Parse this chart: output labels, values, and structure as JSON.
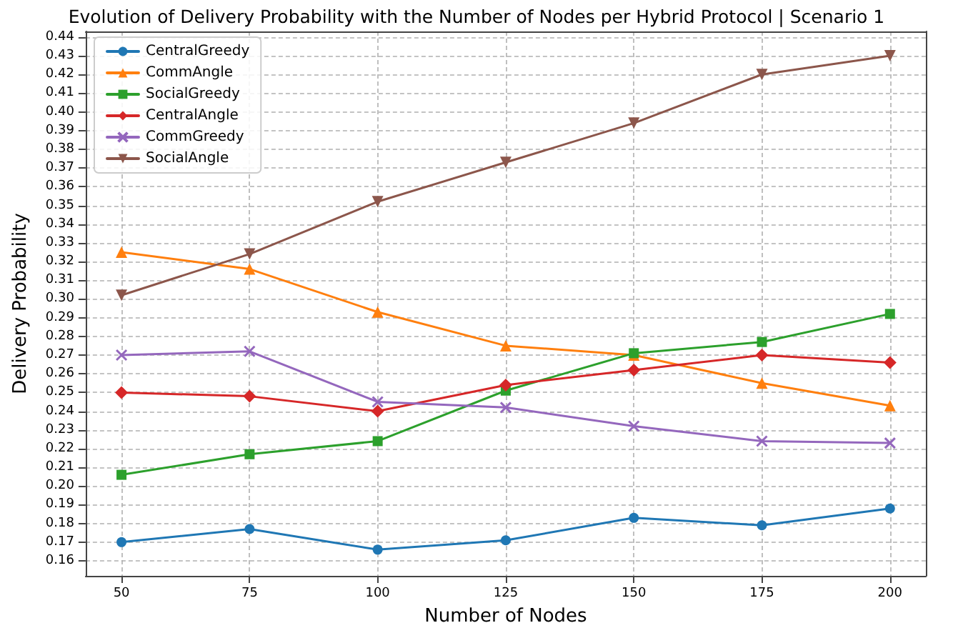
{
  "chart_data": {
    "type": "line",
    "title": "Evolution of Delivery Probability with the Number of Nodes per Hybrid Protocol | Scenario 1",
    "xlabel": "Number of Nodes",
    "ylabel": "Delivery Probability",
    "x": [
      50,
      75,
      100,
      125,
      150,
      175,
      200
    ],
    "series": [
      {
        "name": "CentralGreedy",
        "color": "#1f77b4",
        "marker": "circle",
        "values": [
          0.17,
          0.177,
          0.166,
          0.171,
          0.183,
          0.179,
          0.188
        ]
      },
      {
        "name": "CommAngle",
        "color": "#ff7f0e",
        "marker": "triangle",
        "values": [
          0.325,
          0.316,
          0.293,
          0.275,
          0.27,
          0.255,
          0.243
        ]
      },
      {
        "name": "SocialGreedy",
        "color": "#2ca02c",
        "marker": "square",
        "values": [
          0.206,
          0.217,
          0.224,
          0.251,
          0.271,
          0.277,
          0.292
        ]
      },
      {
        "name": "CentralAngle",
        "color": "#d62728",
        "marker": "diamond",
        "values": [
          0.25,
          0.248,
          0.24,
          0.254,
          0.262,
          0.27,
          0.266
        ]
      },
      {
        "name": "CommGreedy",
        "color": "#9467bd",
        "marker": "cross",
        "values": [
          0.27,
          0.272,
          0.245,
          0.242,
          0.232,
          0.224,
          0.223
        ]
      },
      {
        "name": "SocialAngle",
        "color": "#8c564b",
        "marker": "triangle_down",
        "values": [
          0.302,
          0.324,
          0.352,
          0.373,
          0.394,
          0.42,
          0.43
        ]
      }
    ],
    "xlim": [
      43,
      207
    ],
    "xticks": [
      50,
      75,
      100,
      125,
      150,
      175,
      200
    ],
    "ylim": [
      0.152,
      0.443
    ],
    "yticks": [
      0.16,
      0.17,
      0.18,
      0.19,
      {
        "value": 0.2,
        "label": "0.20"
      },
      0.21,
      0.22,
      0.23,
      0.24,
      0.25,
      0.26,
      0.27,
      0.28,
      0.29,
      {
        "value": 0.3,
        "label": "0.30"
      },
      0.31,
      0.32,
      0.33,
      0.34,
      0.35,
      0.36,
      0.37,
      0.38,
      0.39,
      {
        "value": 0.4,
        "label": "0.40"
      },
      0.41,
      0.42,
      0.43,
      0.44
    ],
    "grid": true,
    "legend": "top left",
    "line_style": "solid"
  }
}
